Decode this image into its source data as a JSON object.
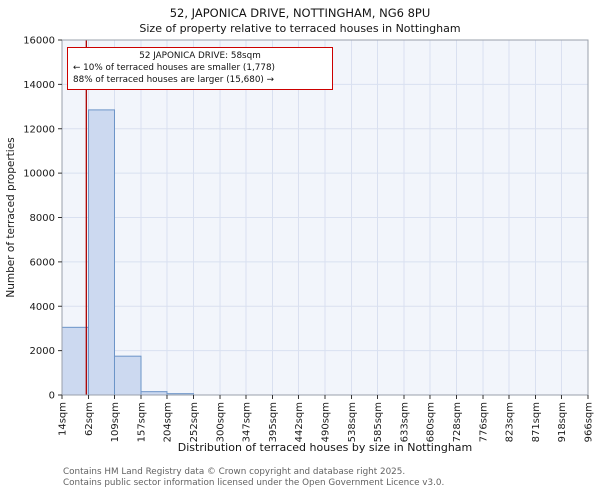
{
  "title": "52, JAPONICA DRIVE, NOTTINGHAM, NG6 8PU",
  "subtitle": "Size of property relative to terraced houses in Nottingham",
  "annotation": {
    "line1": "52 JAPONICA DRIVE: 58sqm",
    "line2": "← 10% of terraced houses are smaller (1,778)",
    "line3": "88% of terraced houses are larger (15,680) →"
  },
  "footer": {
    "line1": "Contains HM Land Registry data © Crown copyright and database right 2025.",
    "line2": "Contains public sector information licensed under the Open Government Licence v3.0."
  },
  "chart_data": {
    "type": "bar",
    "title": "52, JAPONICA DRIVE, NOTTINGHAM, NG6 8PU",
    "subtitle": "Size of property relative to terraced houses in Nottingham",
    "xlabel": "Distribution of terraced houses by size in Nottingham",
    "ylabel": "Number of terraced properties",
    "bin_edges_sqm": [
      14,
      62,
      109,
      157,
      204,
      252,
      300,
      347,
      395,
      442,
      490,
      538,
      585,
      633,
      680,
      728,
      776,
      823,
      871,
      918,
      966
    ],
    "tick_labels": [
      "14sqm",
      "62sqm",
      "109sqm",
      "157sqm",
      "204sqm",
      "252sqm",
      "300sqm",
      "347sqm",
      "395sqm",
      "442sqm",
      "490sqm",
      "538sqm",
      "585sqm",
      "633sqm",
      "680sqm",
      "728sqm",
      "776sqm",
      "823sqm",
      "871sqm",
      "918sqm",
      "966sqm"
    ],
    "values": [
      3050,
      12850,
      1750,
      150,
      60,
      0,
      0,
      0,
      0,
      0,
      0,
      0,
      0,
      0,
      0,
      0,
      0,
      0,
      0,
      0
    ],
    "marker_value_sqm": 58,
    "ylim": [
      0,
      16000
    ],
    "yticks": [
      0,
      2000,
      4000,
      6000,
      8000,
      10000,
      12000,
      14000,
      16000
    ],
    "grid": true,
    "legend": false,
    "colors": {
      "bar_fill": "#ccd9f0",
      "bar_edge": "#6c94c8",
      "marker_line": "#aa0000",
      "annotation_border": "#cc0000",
      "grid": "#d9e0f0",
      "plot_bg": "#f2f5fb",
      "spine": "#9aa0ab"
    }
  }
}
